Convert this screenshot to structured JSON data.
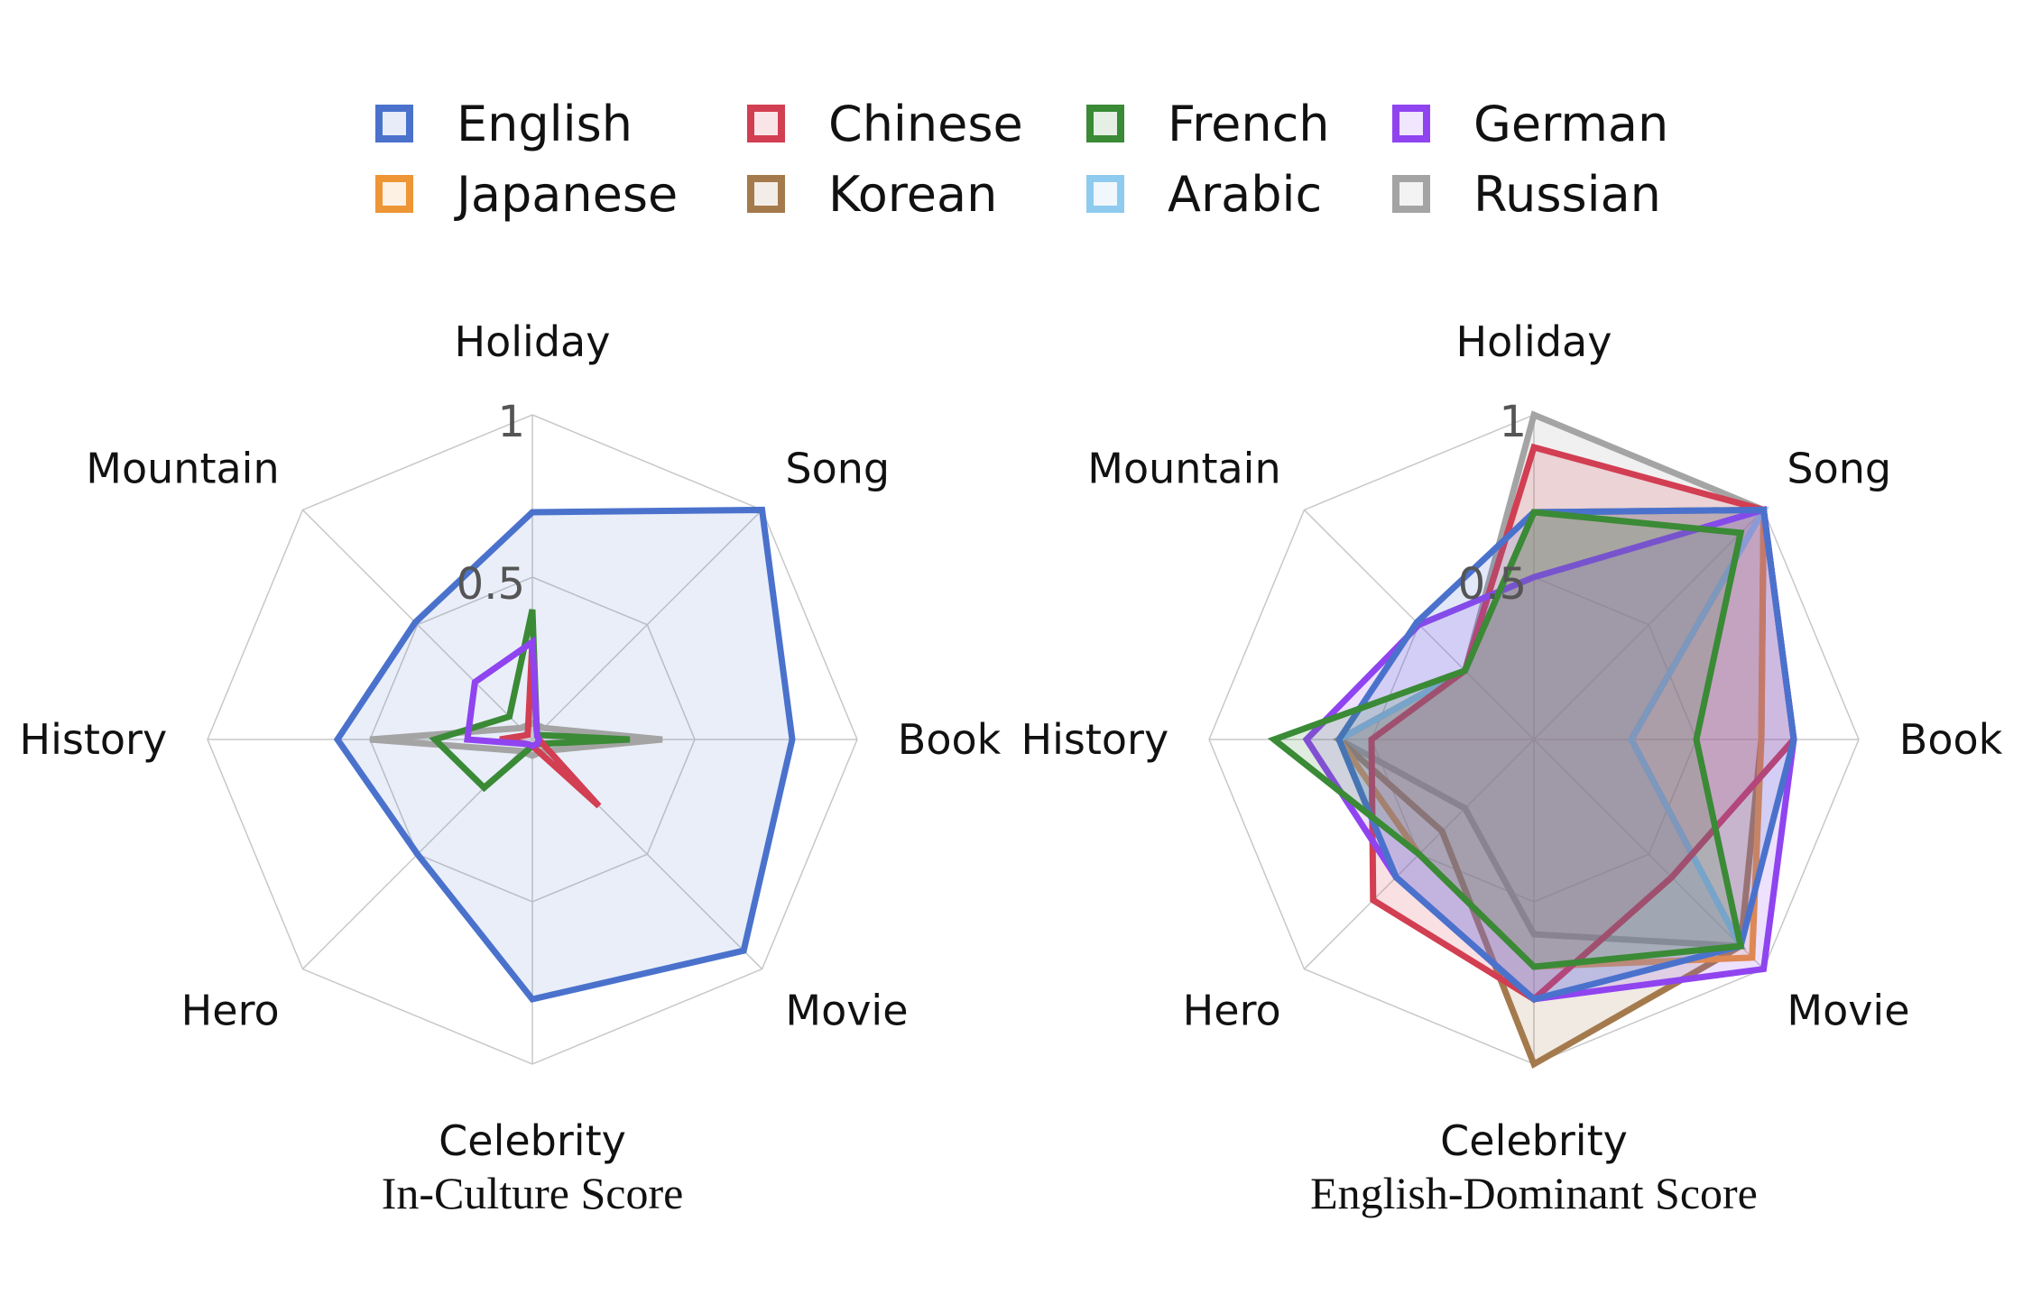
{
  "legend": [
    {
      "name": "English",
      "color": "#4a72cc"
    },
    {
      "name": "Chinese",
      "color": "#d23e52"
    },
    {
      "name": "French",
      "color": "#3a8a36"
    },
    {
      "name": "German",
      "color": "#8f44f0"
    },
    {
      "name": "Japanese",
      "color": "#ee9536"
    },
    {
      "name": "Korean",
      "color": "#a47a4d"
    },
    {
      "name": "Arabic",
      "color": "#8fcbee"
    },
    {
      "name": "Russian",
      "color": "#a4a4a4"
    }
  ],
  "chart_data": [
    {
      "type": "radar",
      "title": "In-Culture Score",
      "axes": [
        "Holiday",
        "Song",
        "Book",
        "Movie",
        "Celebrity",
        "Hero",
        "History",
        "Mountain"
      ],
      "tick_labels": [
        "0.5",
        "1"
      ],
      "range": [
        0,
        1
      ],
      "series": [
        {
          "name": "English",
          "color": "#4a72cc",
          "fill": true,
          "values": [
            0.7,
            1.0,
            0.8,
            0.92,
            0.8,
            0.5,
            0.6,
            0.51
          ]
        },
        {
          "name": "Russian",
          "color": "#a4a4a4",
          "fill": false,
          "values": [
            0.05,
            0.05,
            0.4,
            0.05,
            0.05,
            0.05,
            0.5,
            0.05
          ]
        },
        {
          "name": "French",
          "color": "#3a8a36",
          "fill": false,
          "values": [
            0.4,
            0.02,
            0.3,
            0.02,
            0.02,
            0.21,
            0.3,
            0.1
          ]
        },
        {
          "name": "Chinese",
          "color": "#d23e52",
          "fill": false,
          "values": [
            0.3,
            0.02,
            0.02,
            0.29,
            0.02,
            0.02,
            0.1,
            0.02
          ]
        },
        {
          "name": "German",
          "color": "#8f44f0",
          "fill": false,
          "values": [
            0.3,
            0.02,
            0.02,
            0.02,
            0.02,
            0.02,
            0.2,
            0.25
          ]
        }
      ]
    },
    {
      "type": "radar",
      "title": "English-Dominant Score",
      "axes": [
        "Holiday",
        "Song",
        "Book",
        "Movie",
        "Celebrity",
        "Hero",
        "History",
        "Mountain"
      ],
      "tick_labels": [
        "0.5",
        "1"
      ],
      "range": [
        0,
        1
      ],
      "series": [
        {
          "name": "Russian",
          "color": "#a4a4a4",
          "fill": true,
          "values": [
            1.0,
            1.0,
            0.3,
            0.9,
            0.6,
            0.3,
            0.6,
            0.3
          ]
        },
        {
          "name": "Korean",
          "color": "#a47a4d",
          "fill": true,
          "values": [
            0.7,
            1.0,
            0.7,
            0.9,
            1.0,
            0.4,
            0.6,
            0.3
          ]
        },
        {
          "name": "Japanese",
          "color": "#ee9536",
          "fill": true,
          "values": [
            0.7,
            1.0,
            0.7,
            0.95,
            0.7,
            0.5,
            0.6,
            0.3
          ]
        },
        {
          "name": "Arabic",
          "color": "#8fcbee",
          "fill": true,
          "values": [
            0.7,
            1.0,
            0.3,
            0.9,
            0.8,
            0.6,
            0.6,
            0.3
          ]
        },
        {
          "name": "Chinese",
          "color": "#d23e52",
          "fill": true,
          "values": [
            0.9,
            1.0,
            0.8,
            0.6,
            0.8,
            0.7,
            0.5,
            0.3
          ]
        },
        {
          "name": "German",
          "color": "#8f44f0",
          "fill": true,
          "values": [
            0.5,
            1.0,
            0.8,
            1.0,
            0.8,
            0.6,
            0.7,
            0.5
          ]
        },
        {
          "name": "English",
          "color": "#4a72cc",
          "fill": true,
          "values": [
            0.7,
            1.0,
            0.8,
            0.9,
            0.8,
            0.6,
            0.6,
            0.51
          ]
        },
        {
          "name": "French",
          "color": "#3a8a36",
          "fill": true,
          "values": [
            0.7,
            0.9,
            0.5,
            0.9,
            0.7,
            0.5,
            0.8,
            0.3
          ]
        }
      ]
    }
  ]
}
